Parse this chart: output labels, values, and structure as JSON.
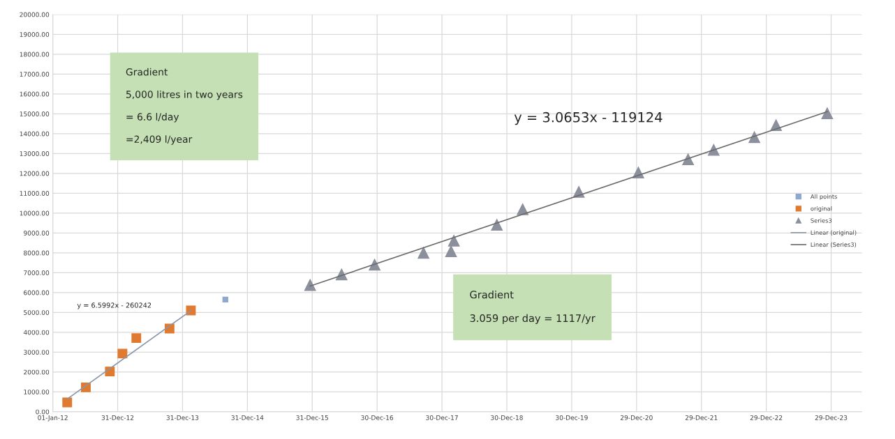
{
  "chart_data": {
    "type": "scatter",
    "series": [
      {
        "name": "All points",
        "marker": "square",
        "color": "#8fa8d0",
        "x": [
          "2014-08-29"
        ],
        "values": [
          5650
        ]
      },
      {
        "name": "original",
        "marker": "square",
        "color": "#e07a30",
        "x": [
          "2012-03-22",
          "2012-07-05",
          "2012-11-17",
          "2013-01-27",
          "2013-04-15",
          "2013-10-19",
          "2014-02-16"
        ],
        "values": [
          470,
          1230,
          2030,
          2930,
          3710,
          4190,
          5100
        ]
      },
      {
        "name": "Series3",
        "marker": "triangle",
        "color": "#8c909c",
        "x": [
          "2015-12-19",
          "2016-06-13",
          "2016-12-16",
          "2017-09-17",
          "2018-02-19",
          "2018-03-07",
          "2018-11-04",
          "2019-03-29",
          "2020-02-08",
          "2021-01-08",
          "2021-10-15",
          "2022-03-08",
          "2022-10-23",
          "2023-02-22",
          "2023-12-07"
        ],
        "values": [
          6380,
          6910,
          7400,
          8000,
          8080,
          8610,
          9410,
          10190,
          11070,
          12040,
          12710,
          13180,
          13820,
          14430,
          15020
        ]
      },
      {
        "name": "Linear (original)",
        "type": "line",
        "marker": "none",
        "line_style": "solid",
        "color": "#8a96a8",
        "x": [
          "2012-03-22",
          "2014-02-16"
        ],
        "values": [
          640,
          5090
        ]
      },
      {
        "name": "Linear (Series3)",
        "type": "line",
        "marker": "none",
        "line_style": "solid",
        "color": "#6b6b6b",
        "x": [
          "2015-12-19",
          "2023-12-07"
        ],
        "values": [
          6330,
          15110
        ]
      }
    ],
    "xlim": [
      "2012-01-01",
      "2024-06-19"
    ],
    "xticks": [
      {
        "value": "2012-01-01",
        "label": "01-Jan-12"
      },
      {
        "value": "2012-12-31",
        "label": "31-Dec-12"
      },
      {
        "value": "2013-12-31",
        "label": "31-Dec-13"
      },
      {
        "value": "2014-12-31",
        "label": "31-Dec-14"
      },
      {
        "value": "2015-12-31",
        "label": "31-Dec-15"
      },
      {
        "value": "2016-12-30",
        "label": "30-Dec-16"
      },
      {
        "value": "2017-12-30",
        "label": "30-Dec-17"
      },
      {
        "value": "2018-12-30",
        "label": "30-Dec-18"
      },
      {
        "value": "2019-12-30",
        "label": "30-Dec-19"
      },
      {
        "value": "2020-12-29",
        "label": "29-Dec-20"
      },
      {
        "value": "2021-12-29",
        "label": "29-Dec-21"
      },
      {
        "value": "2022-12-29",
        "label": "29-Dec-22"
      },
      {
        "value": "2023-12-29",
        "label": "29-Dec-23"
      }
    ],
    "ylim": [
      0,
      20000
    ],
    "yticks": [
      {
        "value": 0,
        "label": "0.00"
      },
      {
        "value": 1000,
        "label": "1000.00"
      },
      {
        "value": 2000,
        "label": "2000.00"
      },
      {
        "value": 3000,
        "label": "3000.00"
      },
      {
        "value": 4000,
        "label": "4000.00"
      },
      {
        "value": 5000,
        "label": "5000.00"
      },
      {
        "value": 6000,
        "label": "6000.00"
      },
      {
        "value": 7000,
        "label": "7000.00"
      },
      {
        "value": 8000,
        "label": "8000.00"
      },
      {
        "value": 9000,
        "label": "9000.00"
      },
      {
        "value": 10000,
        "label": "10000.00"
      },
      {
        "value": 11000,
        "label": "11000.00"
      },
      {
        "value": 12000,
        "label": "12000.00"
      },
      {
        "value": 13000,
        "label": "13000.00"
      },
      {
        "value": 14000,
        "label": "14000.00"
      },
      {
        "value": 15000,
        "label": "15000.00"
      },
      {
        "value": 16000,
        "label": "16000.00"
      },
      {
        "value": 17000,
        "label": "17000.00"
      },
      {
        "value": 18000,
        "label": "18000.00"
      },
      {
        "value": 19000,
        "label": "19000.00"
      },
      {
        "value": 20000,
        "label": "20000.00"
      }
    ],
    "grid": true,
    "legend": "right",
    "annotations": [
      "y = 6.5992x - 260242",
      "Gradient\n\n5,000 litres in two years\n\n= 6.6 l/day\n\n=2,409 l/year",
      "y = 3.0653x - 119124",
      "Gradient\n\n3.059 per day = 1117/yr"
    ]
  }
}
